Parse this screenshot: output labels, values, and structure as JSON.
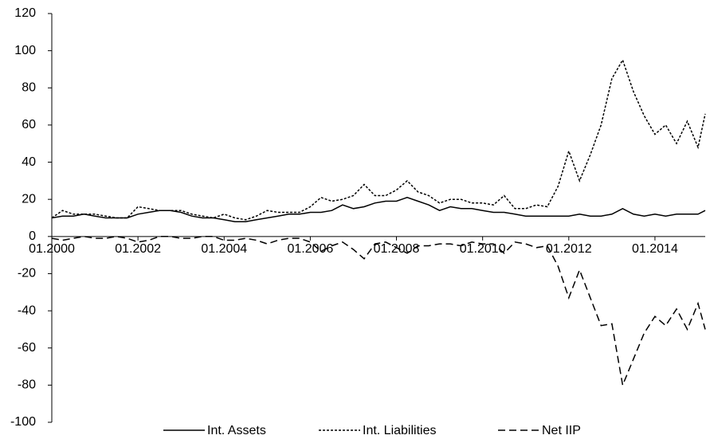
{
  "chart_data": {
    "type": "line",
    "x": [
      "01.2000",
      "04.2000",
      "07.2000",
      "10.2000",
      "01.2001",
      "04.2001",
      "07.2001",
      "10.2001",
      "01.2002",
      "04.2002",
      "07.2002",
      "10.2002",
      "01.2003",
      "04.2003",
      "07.2003",
      "10.2003",
      "01.2004",
      "04.2004",
      "07.2004",
      "10.2004",
      "01.2005",
      "04.2005",
      "07.2005",
      "10.2005",
      "01.2006",
      "04.2006",
      "07.2006",
      "10.2006",
      "01.2007",
      "04.2007",
      "07.2007",
      "10.2007",
      "01.2008",
      "04.2008",
      "07.2008",
      "10.2008",
      "01.2009",
      "04.2009",
      "07.2009",
      "10.2009",
      "01.2010",
      "04.2010",
      "07.2010",
      "10.2010",
      "01.2011",
      "04.2011",
      "07.2011",
      "10.2011",
      "01.2012",
      "04.2012",
      "07.2012",
      "10.2012",
      "01.2013",
      "04.2013",
      "07.2013",
      "10.2013",
      "01.2014",
      "04.2014",
      "07.2014",
      "10.2014",
      "01.2015",
      "03.2015"
    ],
    "series": [
      {
        "name": "Int. Assets",
        "color": "#000000",
        "dash": "none",
        "values": [
          10,
          11,
          11,
          12,
          11,
          10,
          10,
          10,
          12,
          13,
          14,
          14,
          13,
          11,
          10,
          10,
          9,
          8,
          8,
          9,
          10,
          11,
          12,
          12,
          13,
          13,
          14,
          17,
          15,
          16,
          18,
          19,
          19,
          21,
          19,
          17,
          14,
          16,
          15,
          15,
          14,
          13,
          13,
          12,
          11,
          11,
          11,
          11,
          11,
          12,
          11,
          11,
          12,
          15,
          12,
          11,
          12,
          11,
          12,
          12,
          12,
          14
        ]
      },
      {
        "name": "Int. Liabilities",
        "color": "#000000",
        "dash": "3,2",
        "values": [
          10,
          14,
          12,
          12,
          12,
          11,
          10,
          10,
          16,
          15,
          14,
          14,
          14,
          12,
          11,
          10,
          12,
          10,
          9,
          11,
          14,
          13,
          13,
          13,
          16,
          21,
          19,
          20,
          22,
          28,
          22,
          22,
          25,
          30,
          24,
          22,
          18,
          20,
          20,
          18,
          18,
          17,
          22,
          15,
          15,
          17,
          16,
          27,
          46,
          30,
          44,
          60,
          85,
          95,
          78,
          65,
          55,
          60,
          50,
          62,
          48,
          66
        ]
      },
      {
        "name": "Net IIP",
        "color": "#000000",
        "dash": "9,5",
        "values": [
          -1,
          -2,
          -1,
          0,
          -1,
          -1,
          0,
          -1,
          -3,
          -2,
          0,
          0,
          -1,
          -1,
          0,
          0,
          -2,
          -2,
          -1,
          -2,
          -4,
          -2,
          -1,
          -1,
          -3,
          -8,
          -5,
          -3,
          -7,
          -12,
          -4,
          -3,
          -6,
          -9,
          -5,
          -5,
          -4,
          -4,
          -5,
          -3,
          -4,
          -4,
          -9,
          -3,
          -4,
          -6,
          -5,
          -16,
          -33,
          -18,
          -33,
          -48,
          -47,
          -80,
          -66,
          -52,
          -43,
          -48,
          -39,
          -50,
          -36,
          -50
        ]
      }
    ],
    "xticks": [
      "01.2000",
      "01.2002",
      "01.2004",
      "01.2006",
      "01.2008",
      "01.2010",
      "01.2012",
      "01.2014"
    ],
    "ylim": [
      -100,
      120
    ],
    "yticks": [
      -100,
      -80,
      -60,
      -40,
      -20,
      0,
      20,
      40,
      60,
      80,
      100,
      120
    ],
    "legend": "bottom"
  }
}
